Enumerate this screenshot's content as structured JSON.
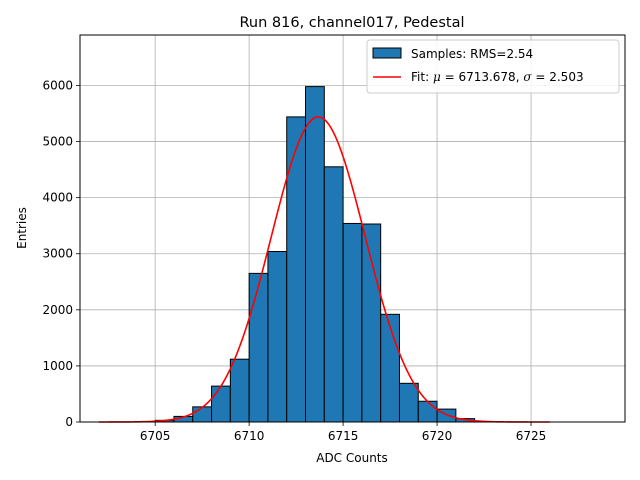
{
  "chart_data": {
    "type": "bar",
    "title": "Run 816, channel017, Pedestal",
    "xlabel": "ADC Counts",
    "ylabel": "Entries",
    "xlim": [
      6701,
      6730
    ],
    "ylim": [
      0,
      6900
    ],
    "xticks": [
      6705,
      6710,
      6715,
      6720,
      6725
    ],
    "yticks": [
      0,
      1000,
      2000,
      3000,
      4000,
      5000,
      6000
    ],
    "grid": true,
    "legend_position": "top-right",
    "bin_width": 1,
    "histogram": {
      "name": "Samples: RMS=2.54",
      "color": "#1f77b4",
      "bin_left_edges": [
        6705,
        6706,
        6707,
        6708,
        6709,
        6710,
        6711,
        6712,
        6713,
        6714,
        6715,
        6716,
        6717,
        6718,
        6719,
        6720,
        6721
      ],
      "counts": [
        30,
        100,
        270,
        640,
        1120,
        2650,
        3040,
        5440,
        5980,
        4550,
        3540,
        3530,
        1920,
        690,
        370,
        230,
        60
      ]
    },
    "fit": {
      "label_prefix": "Fit: ",
      "label_mu": "μ",
      "label_sigma": "σ",
      "mu": "6713.678",
      "sigma": "2.503",
      "color": "#ff0000",
      "amplitude": 5440,
      "mean": 6713.678,
      "std": 2.503,
      "x_range": [
        6702,
        6726
      ]
    }
  }
}
